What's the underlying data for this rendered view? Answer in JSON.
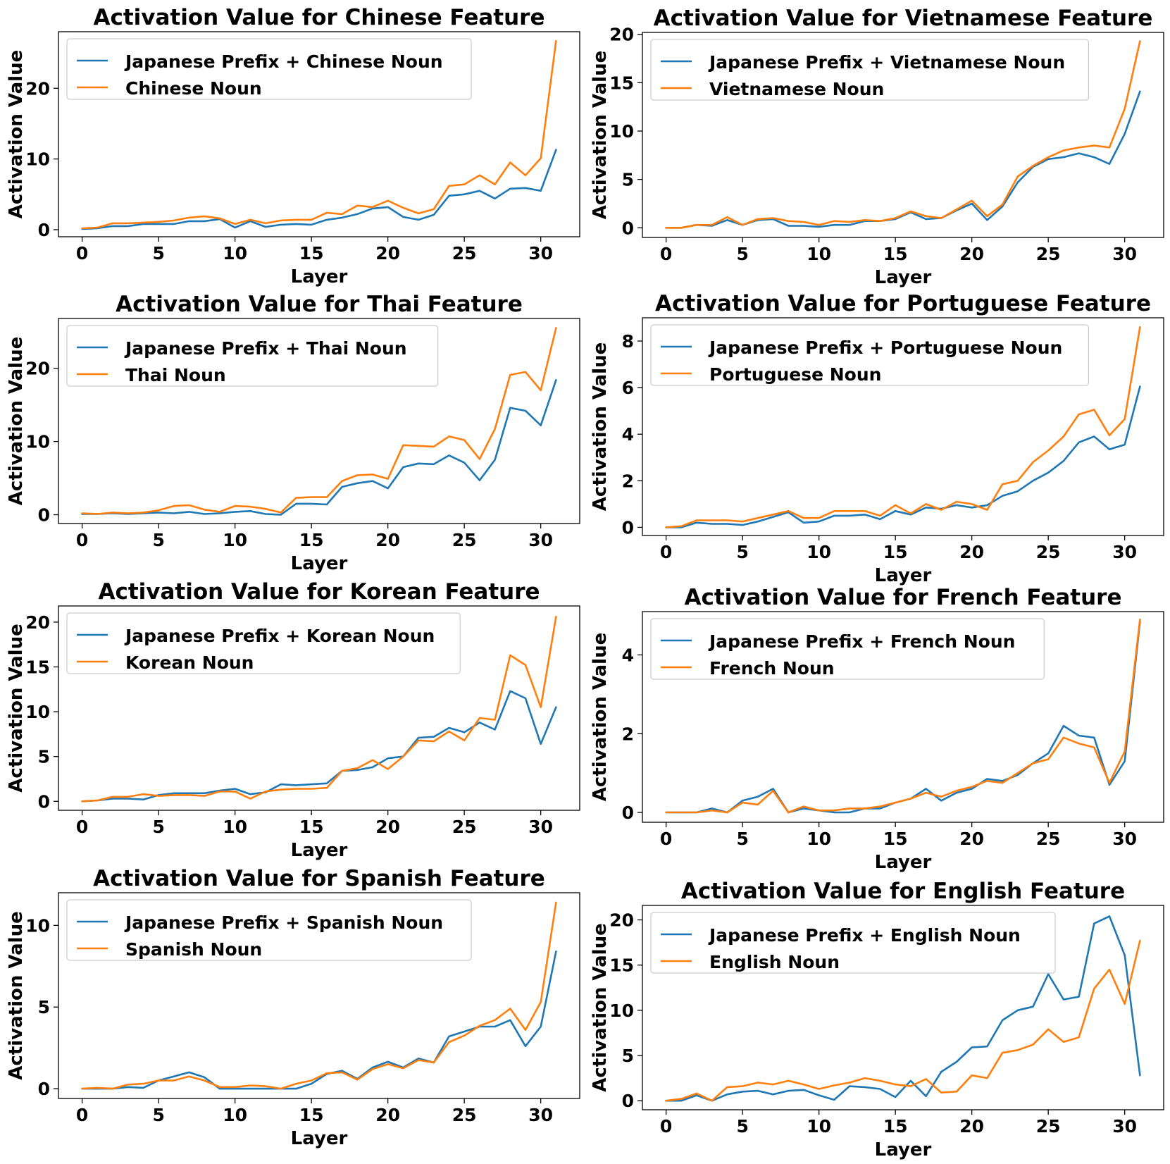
{
  "chart_data": [
    {
      "type": "line",
      "title": "Activation Value for Chinese Feature",
      "xlabel": "Layer",
      "ylabel": "Activation Value",
      "xlim": [
        -1.55,
        32.55
      ],
      "ylim": [
        -1.0,
        28.0
      ],
      "xticks": [
        0,
        5,
        10,
        15,
        20,
        25,
        30
      ],
      "yticks": [
        0,
        10,
        20
      ],
      "legend_position": "top-left",
      "x": [
        0,
        1,
        2,
        3,
        4,
        5,
        6,
        7,
        8,
        9,
        10,
        11,
        12,
        13,
        14,
        15,
        16,
        17,
        18,
        19,
        20,
        21,
        22,
        23,
        24,
        25,
        26,
        27,
        28,
        29,
        30,
        31
      ],
      "series": [
        {
          "name": "Japanese Prefix + Chinese Noun",
          "color": "#1f77b4",
          "values": [
            0.1,
            0.2,
            0.5,
            0.5,
            0.8,
            0.8,
            0.8,
            1.2,
            1.2,
            1.5,
            0.3,
            1.2,
            0.4,
            0.7,
            0.8,
            0.7,
            1.4,
            1.7,
            2.2,
            3.0,
            3.2,
            1.8,
            1.4,
            2.1,
            4.8,
            5.0,
            5.5,
            4.4,
            5.8,
            5.9,
            5.5,
            11.3
          ]
        },
        {
          "name": "Chinese Noun",
          "color": "#ff7f0e",
          "values": [
            0.2,
            0.3,
            0.9,
            0.9,
            1.0,
            1.1,
            1.3,
            1.7,
            1.9,
            1.6,
            0.8,
            1.4,
            0.9,
            1.3,
            1.4,
            1.4,
            2.4,
            2.2,
            3.4,
            3.2,
            4.1,
            3.1,
            2.3,
            2.9,
            6.2,
            6.4,
            7.7,
            6.4,
            9.5,
            7.7,
            10.1,
            26.7
          ]
        }
      ]
    },
    {
      "type": "line",
      "title": "Activation Value for Vietnamese Feature",
      "xlabel": "Layer",
      "ylabel": "Activation Value",
      "xlim": [
        -1.55,
        32.55
      ],
      "ylim": [
        -1.0,
        20.2
      ],
      "xticks": [
        0,
        5,
        10,
        15,
        20,
        25,
        30
      ],
      "yticks": [
        0,
        5,
        10,
        15,
        20
      ],
      "legend_position": "top-left",
      "x": [
        0,
        1,
        2,
        3,
        4,
        5,
        6,
        7,
        8,
        9,
        10,
        11,
        12,
        13,
        14,
        15,
        16,
        17,
        18,
        19,
        20,
        21,
        22,
        23,
        24,
        25,
        26,
        27,
        28,
        29,
        30,
        31
      ],
      "series": [
        {
          "name": "Japanese Prefix + Vietnamese Noun",
          "color": "#1f77b4",
          "values": [
            0.0,
            0.0,
            0.3,
            0.2,
            0.8,
            0.3,
            0.8,
            0.9,
            0.2,
            0.2,
            0.1,
            0.3,
            0.3,
            0.7,
            0.7,
            0.9,
            1.6,
            0.9,
            1.0,
            1.8,
            2.5,
            0.8,
            2.2,
            4.7,
            6.3,
            7.1,
            7.3,
            7.7,
            7.3,
            6.6,
            9.7,
            14.1
          ]
        },
        {
          "name": "Vietnamese Noun",
          "color": "#ff7f0e",
          "values": [
            0.0,
            0.0,
            0.3,
            0.3,
            1.1,
            0.3,
            0.9,
            1.0,
            0.7,
            0.6,
            0.3,
            0.7,
            0.6,
            0.8,
            0.7,
            1.0,
            1.7,
            1.2,
            1.0,
            1.9,
            2.8,
            1.2,
            2.4,
            5.3,
            6.4,
            7.3,
            8.0,
            8.3,
            8.5,
            8.3,
            12.3,
            19.3
          ]
        }
      ]
    },
    {
      "type": "line",
      "title": "Activation Value for Thai Feature",
      "xlabel": "Layer",
      "ylabel": "Activation Value",
      "xlim": [
        -1.55,
        32.55
      ],
      "ylim": [
        -1.2,
        26.8
      ],
      "xticks": [
        0,
        5,
        10,
        15,
        20,
        25,
        30
      ],
      "yticks": [
        0,
        10,
        20
      ],
      "legend_position": "top-left",
      "x": [
        0,
        1,
        2,
        3,
        4,
        5,
        6,
        7,
        8,
        9,
        10,
        11,
        12,
        13,
        14,
        15,
        16,
        17,
        18,
        19,
        20,
        21,
        22,
        23,
        24,
        25,
        26,
        27,
        28,
        29,
        30,
        31
      ],
      "series": [
        {
          "name": "Japanese Prefix + Thai Noun",
          "color": "#1f77b4",
          "values": [
            0.1,
            0.1,
            0.2,
            0.1,
            0.2,
            0.3,
            0.2,
            0.4,
            0.1,
            0.2,
            0.4,
            0.5,
            0.1,
            0.0,
            1.5,
            1.5,
            1.4,
            3.8,
            4.3,
            4.6,
            3.6,
            6.5,
            7.0,
            6.9,
            8.1,
            7.1,
            4.7,
            7.5,
            14.6,
            14.2,
            12.2,
            18.4
          ]
        },
        {
          "name": "Thai Noun",
          "color": "#ff7f0e",
          "values": [
            0.2,
            0.1,
            0.3,
            0.2,
            0.3,
            0.6,
            1.2,
            1.3,
            0.7,
            0.4,
            1.2,
            1.1,
            0.8,
            0.3,
            2.3,
            2.4,
            2.4,
            4.6,
            5.4,
            5.5,
            4.9,
            9.5,
            9.4,
            9.3,
            10.7,
            10.2,
            7.6,
            11.7,
            19.1,
            19.5,
            17.0,
            25.5
          ]
        }
      ]
    },
    {
      "type": "line",
      "title": "Activation Value for Portuguese Feature",
      "xlabel": "Layer",
      "ylabel": "Activation Value",
      "xlim": [
        -1.55,
        32.55
      ],
      "ylim": [
        -0.35,
        9.0
      ],
      "xticks": [
        0,
        5,
        10,
        15,
        20,
        25,
        30
      ],
      "yticks": [
        0,
        2,
        4,
        6,
        8
      ],
      "legend_position": "top-left",
      "x": [
        0,
        1,
        2,
        3,
        4,
        5,
        6,
        7,
        8,
        9,
        10,
        11,
        12,
        13,
        14,
        15,
        16,
        17,
        18,
        19,
        20,
        21,
        22,
        23,
        24,
        25,
        26,
        27,
        28,
        29,
        30,
        31
      ],
      "series": [
        {
          "name": "Japanese Prefix + Portuguese Noun",
          "color": "#1f77b4",
          "values": [
            0.0,
            0.0,
            0.2,
            0.15,
            0.15,
            0.1,
            0.25,
            0.45,
            0.65,
            0.2,
            0.25,
            0.5,
            0.5,
            0.55,
            0.35,
            0.7,
            0.55,
            0.85,
            0.8,
            0.95,
            0.85,
            0.95,
            1.35,
            1.55,
            2.0,
            2.35,
            2.85,
            3.65,
            3.9,
            3.35,
            3.55,
            6.05
          ]
        },
        {
          "name": "Portuguese Noun",
          "color": "#ff7f0e",
          "values": [
            0.0,
            0.05,
            0.3,
            0.3,
            0.3,
            0.25,
            0.4,
            0.55,
            0.7,
            0.4,
            0.4,
            0.7,
            0.7,
            0.7,
            0.5,
            0.95,
            0.6,
            1.0,
            0.75,
            1.1,
            1.0,
            0.75,
            1.85,
            2.0,
            2.8,
            3.3,
            3.9,
            4.85,
            5.05,
            3.95,
            4.65,
            8.6
          ]
        }
      ]
    },
    {
      "type": "line",
      "title": "Activation Value for Korean Feature",
      "xlabel": "Layer",
      "ylabel": "Activation Value",
      "xlim": [
        -1.55,
        32.55
      ],
      "ylim": [
        -1.0,
        21.8
      ],
      "xticks": [
        0,
        5,
        10,
        15,
        20,
        25,
        30
      ],
      "yticks": [
        0,
        5,
        10,
        15,
        20
      ],
      "legend_position": "top-left",
      "x": [
        0,
        1,
        2,
        3,
        4,
        5,
        6,
        7,
        8,
        9,
        10,
        11,
        12,
        13,
        14,
        15,
        16,
        17,
        18,
        19,
        20,
        21,
        22,
        23,
        24,
        25,
        26,
        27,
        28,
        29,
        30,
        31
      ],
      "series": [
        {
          "name": "Japanese Prefix + Korean Noun",
          "color": "#1f77b4",
          "values": [
            0.0,
            0.1,
            0.3,
            0.3,
            0.2,
            0.7,
            0.9,
            0.9,
            0.9,
            1.2,
            1.4,
            0.8,
            1.0,
            1.9,
            1.8,
            1.9,
            2.0,
            3.4,
            3.5,
            3.8,
            4.8,
            5.0,
            7.1,
            7.2,
            8.2,
            7.7,
            8.8,
            8.0,
            12.3,
            11.5,
            6.4,
            10.5
          ]
        },
        {
          "name": "Korean Noun",
          "color": "#ff7f0e",
          "values": [
            0.0,
            0.1,
            0.5,
            0.5,
            0.8,
            0.6,
            0.7,
            0.7,
            0.6,
            1.1,
            1.1,
            0.3,
            1.1,
            1.3,
            1.4,
            1.4,
            1.5,
            3.4,
            3.7,
            4.6,
            3.6,
            5.0,
            6.8,
            6.7,
            7.8,
            6.8,
            9.3,
            9.1,
            16.3,
            15.2,
            10.5,
            20.6
          ]
        }
      ]
    },
    {
      "type": "line",
      "title": "Activation Value for French Feature",
      "xlabel": "Layer",
      "ylabel": "Activation Value",
      "xlim": [
        -1.55,
        32.55
      ],
      "ylim": [
        -0.25,
        5.1
      ],
      "xticks": [
        0,
        5,
        10,
        15,
        20,
        25,
        30
      ],
      "yticks": [
        0,
        2,
        4
      ],
      "legend_position": "top-left",
      "x": [
        0,
        1,
        2,
        3,
        4,
        5,
        6,
        7,
        8,
        9,
        10,
        11,
        12,
        13,
        14,
        15,
        16,
        17,
        18,
        19,
        20,
        21,
        22,
        23,
        24,
        25,
        26,
        27,
        28,
        29,
        30,
        31
      ],
      "series": [
        {
          "name": "Japanese Prefix + French Noun",
          "color": "#1f77b4",
          "values": [
            0.0,
            0.0,
            0.0,
            0.1,
            0.0,
            0.3,
            0.4,
            0.6,
            0.0,
            0.1,
            0.05,
            0.0,
            0.0,
            0.1,
            0.1,
            0.25,
            0.35,
            0.6,
            0.3,
            0.5,
            0.6,
            0.85,
            0.8,
            0.95,
            1.25,
            1.5,
            2.2,
            1.95,
            1.9,
            0.7,
            1.3,
            4.85
          ]
        },
        {
          "name": "French Noun",
          "color": "#ff7f0e",
          "values": [
            0.0,
            0.0,
            0.0,
            0.05,
            0.0,
            0.25,
            0.2,
            0.55,
            0.0,
            0.15,
            0.05,
            0.05,
            0.1,
            0.1,
            0.15,
            0.25,
            0.35,
            0.5,
            0.4,
            0.55,
            0.65,
            0.8,
            0.75,
            1.0,
            1.25,
            1.35,
            1.9,
            1.75,
            1.65,
            0.75,
            1.55,
            4.9
          ]
        }
      ]
    },
    {
      "type": "line",
      "title": "Activation Value for Spanish Feature",
      "xlabel": "Layer",
      "ylabel": "Activation Value",
      "xlim": [
        -1.55,
        32.55
      ],
      "ylim": [
        -0.6,
        12.0
      ],
      "xticks": [
        0,
        5,
        10,
        15,
        20,
        25,
        30
      ],
      "yticks": [
        0,
        5,
        10
      ],
      "legend_position": "top-left",
      "x": [
        0,
        1,
        2,
        3,
        4,
        5,
        6,
        7,
        8,
        9,
        10,
        11,
        12,
        13,
        14,
        15,
        16,
        17,
        18,
        19,
        20,
        21,
        22,
        23,
        24,
        25,
        26,
        27,
        28,
        29,
        30,
        31
      ],
      "series": [
        {
          "name": "Japanese Prefix + Spanish Noun",
          "color": "#1f77b4",
          "values": [
            0.0,
            0.0,
            0.0,
            0.1,
            0.05,
            0.5,
            0.75,
            1.0,
            0.7,
            0.0,
            0.0,
            0.0,
            0.0,
            0.0,
            0.0,
            0.3,
            0.9,
            1.1,
            0.6,
            1.3,
            1.65,
            1.3,
            1.85,
            1.6,
            3.2,
            3.5,
            3.8,
            3.8,
            4.2,
            2.6,
            3.8,
            8.4
          ]
        },
        {
          "name": "Spanish Noun",
          "color": "#ff7f0e",
          "values": [
            0.0,
            0.05,
            0.0,
            0.25,
            0.3,
            0.5,
            0.5,
            0.75,
            0.5,
            0.1,
            0.1,
            0.2,
            0.15,
            0.0,
            0.3,
            0.5,
            0.95,
            1.0,
            0.55,
            1.2,
            1.5,
            1.25,
            1.75,
            1.6,
            2.85,
            3.25,
            3.85,
            4.2,
            4.9,
            3.6,
            5.3,
            11.4
          ]
        }
      ]
    },
    {
      "type": "line",
      "title": "Activation Value for English Feature",
      "xlabel": "Layer",
      "ylabel": "Activation Value",
      "xlim": [
        -1.55,
        32.55
      ],
      "ylim": [
        -1.0,
        21.6
      ],
      "xticks": [
        0,
        5,
        10,
        15,
        20,
        25,
        30
      ],
      "yticks": [
        0,
        5,
        10,
        15,
        20
      ],
      "legend_position": "top-left",
      "x": [
        0,
        1,
        2,
        3,
        4,
        5,
        6,
        7,
        8,
        9,
        10,
        11,
        12,
        13,
        14,
        15,
        16,
        17,
        18,
        19,
        20,
        21,
        22,
        23,
        24,
        25,
        26,
        27,
        28,
        29,
        30,
        31
      ],
      "series": [
        {
          "name": "Japanese Prefix + English Noun",
          "color": "#1f77b4",
          "values": [
            0.0,
            0.0,
            0.6,
            0.0,
            0.7,
            1.0,
            1.1,
            0.7,
            1.1,
            1.2,
            0.6,
            0.1,
            1.6,
            1.5,
            1.3,
            0.4,
            2.2,
            0.5,
            3.2,
            4.3,
            5.9,
            6.0,
            8.9,
            10.0,
            10.4,
            14.0,
            11.2,
            11.5,
            19.6,
            20.4,
            16.1,
            2.8
          ]
        },
        {
          "name": "English Noun",
          "color": "#ff7f0e",
          "values": [
            0.0,
            0.2,
            0.8,
            0.0,
            1.5,
            1.6,
            2.0,
            1.8,
            2.2,
            1.8,
            1.3,
            1.7,
            2.0,
            2.5,
            2.2,
            1.8,
            1.6,
            2.4,
            0.9,
            1.0,
            2.8,
            2.5,
            5.3,
            5.6,
            6.2,
            7.9,
            6.5,
            7.0,
            12.4,
            14.5,
            10.7,
            17.7
          ]
        }
      ]
    }
  ]
}
